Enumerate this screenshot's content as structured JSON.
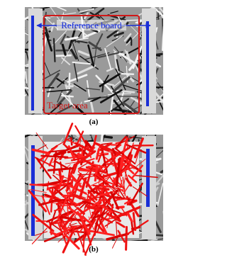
{
  "panels": [
    {
      "label": "(a)",
      "reference_label": "Reference board",
      "target_label": "Target area"
    },
    {
      "label": "(b)"
    }
  ]
}
